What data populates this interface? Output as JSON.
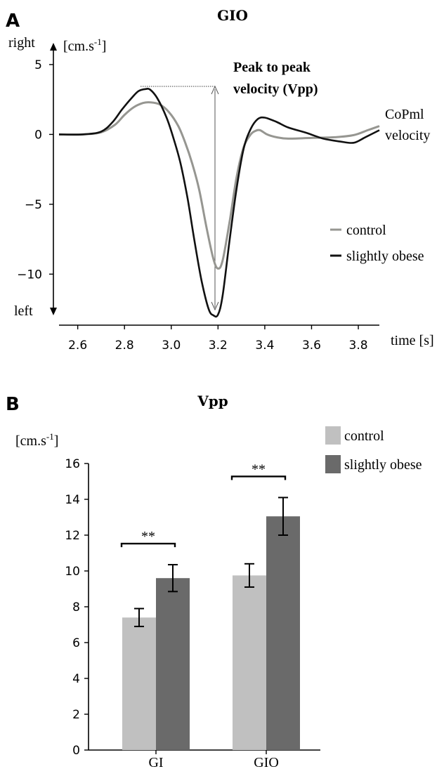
{
  "chart_data": [
    {
      "panel": "A",
      "type": "line",
      "title": "GIO",
      "ylabel": "[cm.s-1]",
      "ylabel_top": "right",
      "ylabel_bottom": "left",
      "xlabel": "time [s]",
      "xlim": [
        2.52,
        3.89
      ],
      "ylim": [
        -13.3,
        5.6
      ],
      "xticks": [
        "2.6",
        "2.8",
        "3.0",
        "3.2",
        "3.4",
        "3.6",
        "3.8"
      ],
      "yticks": [
        "5",
        "0",
        "−5",
        "−10"
      ],
      "annotation": [
        "Peak to peak",
        "velocity (Vpp)"
      ],
      "side_label": [
        "CoPml",
        "velocity"
      ],
      "series": [
        {
          "name": "control",
          "color": "#969691",
          "x": [
            2.52,
            2.62,
            2.7,
            2.76,
            2.8,
            2.84,
            2.88,
            2.91,
            2.95,
            2.99,
            3.03,
            3.06,
            3.09,
            3.12,
            3.15,
            3.18,
            3.2,
            3.22,
            3.25,
            3.28,
            3.31,
            3.34,
            3.36,
            3.38,
            3.41,
            3.45,
            3.5,
            3.6,
            3.7,
            3.78,
            3.84,
            3.89
          ],
          "y": [
            0,
            0,
            0.15,
            0.7,
            1.4,
            1.95,
            2.25,
            2.3,
            2.15,
            1.6,
            0.6,
            -0.6,
            -2.1,
            -4.0,
            -6.6,
            -8.9,
            -9.6,
            -9.0,
            -6.2,
            -3.0,
            -0.9,
            0.0,
            0.25,
            0.3,
            0.0,
            -0.2,
            -0.3,
            -0.25,
            -0.2,
            -0.05,
            0.3,
            0.6
          ]
        },
        {
          "name": "slightly obese",
          "color": "#111111",
          "x": [
            2.52,
            2.62,
            2.7,
            2.75,
            2.79,
            2.83,
            2.86,
            2.89,
            2.91,
            2.94,
            2.98,
            3.01,
            3.04,
            3.07,
            3.1,
            3.13,
            3.16,
            3.18,
            3.2,
            3.22,
            3.25,
            3.28,
            3.31,
            3.34,
            3.37,
            3.4,
            3.45,
            3.5,
            3.58,
            3.65,
            3.72,
            3.78,
            3.83,
            3.89
          ],
          "y": [
            0,
            0,
            0.2,
            0.9,
            1.8,
            2.6,
            3.1,
            3.25,
            3.2,
            2.6,
            1.2,
            -0.3,
            -2.1,
            -4.6,
            -7.7,
            -10.5,
            -12.5,
            -12.95,
            -12.9,
            -11.5,
            -7.5,
            -3.8,
            -1.0,
            0.4,
            1.1,
            1.2,
            0.9,
            0.5,
            0.1,
            -0.3,
            -0.5,
            -0.6,
            -0.2,
            0.3
          ]
        }
      ]
    },
    {
      "panel": "B",
      "type": "bar",
      "title": "Vpp",
      "ylabel": "[cm.s-1]",
      "ylim": [
        0,
        16
      ],
      "yticks": [
        "0",
        "2",
        "4",
        "6",
        "8",
        "10",
        "12",
        "14",
        "16"
      ],
      "categories": [
        "GI",
        "GIO"
      ],
      "series": [
        {
          "name": "control",
          "color": "#c0c0c0",
          "values": [
            7.4,
            9.75
          ],
          "error": [
            0.5,
            0.65
          ]
        },
        {
          "name": "slightly obese",
          "color": "#6a6a6a",
          "values": [
            9.6,
            13.05
          ],
          "error": [
            0.75,
            1.05
          ]
        }
      ],
      "significance": [
        "**",
        "**"
      ]
    }
  ],
  "labels": {
    "panel_a": "A",
    "panel_b": "B",
    "unit_prefix": "[cm.s",
    "unit_exp": "-1",
    "unit_suffix": "]"
  }
}
